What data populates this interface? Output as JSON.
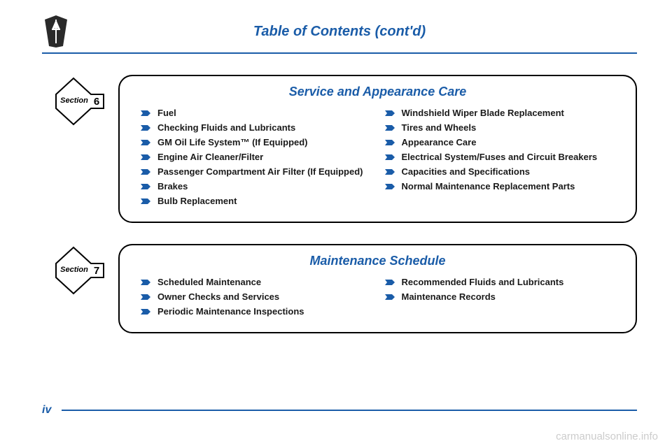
{
  "header": {
    "title": "Table of Contents (cont'd)"
  },
  "sections": [
    {
      "label": "Section",
      "number": "6",
      "title": "Service and Appearance Care",
      "col1": [
        "Fuel",
        "Checking Fluids and Lubricants",
        "GM Oil Life System™ (If Equipped)",
        "Engine Air Cleaner/Filter",
        "Passenger Compartment Air Filter (If Equipped)",
        "Brakes",
        "Bulb Replacement"
      ],
      "col2": [
        "Windshield Wiper Blade Replacement",
        "Tires and Wheels",
        "Appearance Care",
        "Electrical System/Fuses and Circuit Breakers",
        "Capacities and Specifications",
        "Normal Maintenance Replacement Parts"
      ]
    },
    {
      "label": "Section",
      "number": "7",
      "title": "Maintenance Schedule",
      "col1": [
        "Scheduled Maintenance",
        "Owner Checks and Services",
        "Periodic Maintenance Inspections"
      ],
      "col2": [
        "Recommended Fluids and Lubricants",
        "Maintenance Records"
      ]
    }
  ],
  "footer": {
    "page_number": "iv",
    "watermark": "carmanualsonline.info"
  },
  "colors": {
    "accent": "#1a5ca8",
    "text": "#1a1a1a",
    "border": "#000000"
  }
}
